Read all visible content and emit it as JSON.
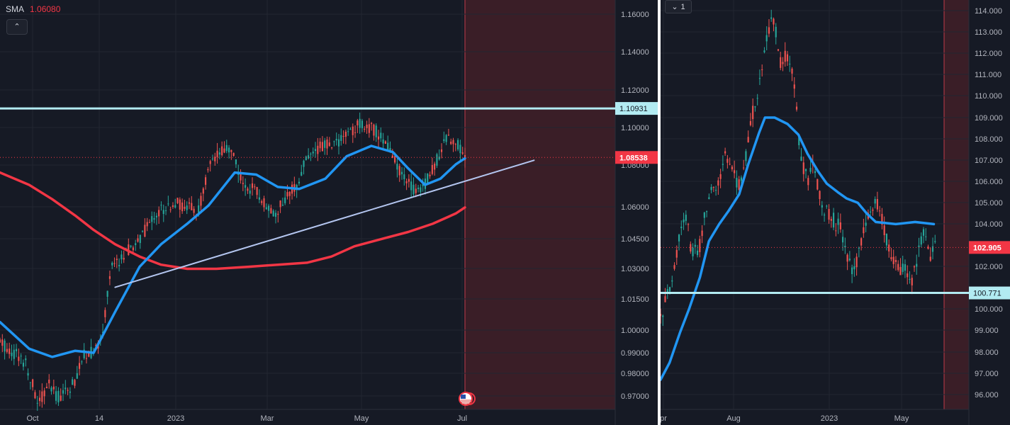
{
  "colors": {
    "background": "#161a25",
    "grid": "#222631",
    "up": "#26a69a",
    "down": "#ef5350",
    "sma_fast": "#2196f3",
    "sma_slow": "#f23645",
    "hline": "#b2ebf2",
    "trend": "#b4c6f0",
    "future_shade": "#3a1e27",
    "current_price_tag": "#f23645"
  },
  "left_legend": {
    "label": "SMA",
    "value": "1.06080",
    "collapse_icon": "chevron-up-icon",
    "collapse_label": "⌃"
  },
  "right_legend": {
    "interval_icon": "chevron-down-icon",
    "interval_glyph": "⌄",
    "interval_label": "1"
  },
  "chart_data": [
    {
      "type": "candlestick",
      "title": "",
      "y_axis_ticks": [
        "1.16000",
        "1.14000",
        "1.12000",
        "1.10000",
        "1.08000",
        "1.06000",
        "1.04500",
        "1.03000",
        "1.01500",
        "1.00000",
        "0.99000",
        "0.98000",
        "0.97000"
      ],
      "x_axis_ticks": [
        "Oct",
        "14",
        "2023",
        "Mar",
        "May",
        "Jul"
      ],
      "horizontal_line": {
        "label": "1.10931",
        "value": 1.10931
      },
      "current_price": {
        "label": "1.08538",
        "value": 1.08538
      },
      "sma_fast": [
        [
          "2022-09-01",
          1.005
        ],
        [
          "2022-09-20",
          0.992
        ],
        [
          "2022-10-05",
          0.988
        ],
        [
          "2022-10-20",
          0.991
        ],
        [
          "2022-11-01",
          0.99
        ],
        [
          "2022-11-15",
          1.01
        ],
        [
          "2022-12-01",
          1.032
        ],
        [
          "2022-12-15",
          1.043
        ],
        [
          "2023-01-01",
          1.053
        ],
        [
          "2023-01-15",
          1.062
        ],
        [
          "2023-02-01",
          1.078
        ],
        [
          "2023-02-15",
          1.077
        ],
        [
          "2023-03-01",
          1.071
        ],
        [
          "2023-03-15",
          1.07
        ],
        [
          "2023-04-01",
          1.075
        ],
        [
          "2023-04-15",
          1.086
        ],
        [
          "2023-05-01",
          1.091
        ],
        [
          "2023-05-15",
          1.088
        ],
        [
          "2023-05-25",
          1.08
        ],
        [
          "2023-06-05",
          1.072
        ],
        [
          "2023-06-15",
          1.075
        ],
        [
          "2023-06-25",
          1.082
        ],
        [
          "2023-07-01",
          1.085
        ]
      ],
      "sma_slow": [
        [
          "2022-09-01",
          1.078
        ],
        [
          "2022-09-20",
          1.072
        ],
        [
          "2022-10-05",
          1.065
        ],
        [
          "2022-10-20",
          1.057
        ],
        [
          "2022-11-01",
          1.05
        ],
        [
          "2022-11-15",
          1.043
        ],
        [
          "2022-12-01",
          1.037
        ],
        [
          "2022-12-15",
          1.033
        ],
        [
          "2023-01-01",
          1.031
        ],
        [
          "2023-01-20",
          1.031
        ],
        [
          "2023-02-10",
          1.032
        ],
        [
          "2023-03-01",
          1.033
        ],
        [
          "2023-03-20",
          1.034
        ],
        [
          "2023-04-05",
          1.037
        ],
        [
          "2023-04-20",
          1.042
        ],
        [
          "2023-05-10",
          1.046
        ],
        [
          "2023-05-25",
          1.049
        ],
        [
          "2023-06-10",
          1.053
        ],
        [
          "2023-06-25",
          1.058
        ],
        [
          "2023-07-01",
          1.061
        ]
      ],
      "trend_line": [
        [
          "2022-11-15",
          1.022
        ],
        [
          "2023-08-15",
          1.084
        ]
      ],
      "candles_path": [
        [
          "2022-09-01",
          0.995
        ],
        [
          "2022-09-10",
          0.99
        ],
        [
          "2022-09-18",
          0.985
        ],
        [
          "2022-09-26",
          0.965
        ],
        [
          "2022-10-02",
          0.975
        ],
        [
          "2022-10-08",
          0.968
        ],
        [
          "2022-10-14",
          0.972
        ],
        [
          "2022-10-20",
          0.975
        ],
        [
          "2022-10-26",
          0.99
        ],
        [
          "2022-11-01",
          0.99
        ],
        [
          "2022-11-06",
          0.995
        ],
        [
          "2022-11-12",
          1.03
        ],
        [
          "2022-11-18",
          1.035
        ],
        [
          "2022-11-24",
          1.04
        ],
        [
          "2022-12-01",
          1.045
        ],
        [
          "2022-12-08",
          1.055
        ],
        [
          "2022-12-15",
          1.06
        ],
        [
          "2022-12-22",
          1.063
        ],
        [
          "2023-01-01",
          1.062
        ],
        [
          "2023-01-08",
          1.058
        ],
        [
          "2023-01-15",
          1.08
        ],
        [
          "2023-01-22",
          1.087
        ],
        [
          "2023-01-30",
          1.09
        ],
        [
          "2023-02-06",
          1.072
        ],
        [
          "2023-02-13",
          1.07
        ],
        [
          "2023-02-20",
          1.064
        ],
        [
          "2023-02-27",
          1.058
        ],
        [
          "2023-03-06",
          1.065
        ],
        [
          "2023-03-13",
          1.072
        ],
        [
          "2023-03-20",
          1.085
        ],
        [
          "2023-03-27",
          1.09
        ],
        [
          "2023-04-03",
          1.092
        ],
        [
          "2023-04-10",
          1.093
        ],
        [
          "2023-04-17",
          1.098
        ],
        [
          "2023-04-24",
          1.102
        ],
        [
          "2023-05-01",
          1.1
        ],
        [
          "2023-05-08",
          1.095
        ],
        [
          "2023-05-15",
          1.085
        ],
        [
          "2023-05-22",
          1.075
        ],
        [
          "2023-05-29",
          1.07
        ],
        [
          "2023-06-05",
          1.072
        ],
        [
          "2023-06-12",
          1.083
        ],
        [
          "2023-06-19",
          1.095
        ],
        [
          "2023-06-26",
          1.093
        ],
        [
          "2023-07-01",
          1.086
        ]
      ]
    },
    {
      "type": "candlestick",
      "title": "",
      "y_axis_ticks": [
        "114.000",
        "113.000",
        "112.000",
        "111.000",
        "110.000",
        "109.000",
        "108.000",
        "107.000",
        "106.000",
        "105.000",
        "104.000",
        "102.000",
        "100.000",
        "99.000",
        "98.000",
        "97.000",
        "96.000"
      ],
      "x_axis_ticks": [
        "pr",
        "Aug",
        "2023",
        "May"
      ],
      "horizontal_line": {
        "label": "100.771",
        "value": 100.771
      },
      "current_price": {
        "label": "102.905",
        "value": 102.905
      },
      "sma_fast": [
        [
          "2022-04-01",
          96.7
        ],
        [
          "2022-04-15",
          97.5
        ],
        [
          "2022-05-01",
          98.9
        ],
        [
          "2022-05-15",
          100.0
        ],
        [
          "2022-06-01",
          101.5
        ],
        [
          "2022-06-15",
          103.2
        ],
        [
          "2022-07-01",
          104.0
        ],
        [
          "2022-07-15",
          104.6
        ],
        [
          "2022-08-01",
          105.4
        ],
        [
          "2022-08-15",
          106.8
        ],
        [
          "2022-09-01",
          108.3
        ],
        [
          "2022-09-10",
          109.0
        ],
        [
          "2022-09-25",
          109.0
        ],
        [
          "2022-10-15",
          108.7
        ],
        [
          "2022-11-01",
          108.2
        ],
        [
          "2022-11-15",
          107.3
        ],
        [
          "2022-12-01",
          106.5
        ],
        [
          "2022-12-15",
          105.9
        ],
        [
          "2023-01-01",
          105.5
        ],
        [
          "2023-01-15",
          105.2
        ],
        [
          "2023-02-01",
          105.0
        ],
        [
          "2023-02-15",
          104.5
        ],
        [
          "2023-03-01",
          104.1
        ],
        [
          "2023-04-01",
          104.0
        ],
        [
          "2023-05-01",
          104.1
        ],
        [
          "2023-05-30",
          104.0
        ]
      ],
      "candles_path": [
        [
          "2022-04-01",
          99.5
        ],
        [
          "2022-04-10",
          100.5
        ],
        [
          "2022-04-20",
          101.5
        ],
        [
          "2022-05-01",
          103.5
        ],
        [
          "2022-05-10",
          104.5
        ],
        [
          "2022-05-20",
          102.5
        ],
        [
          "2022-06-01",
          103.0
        ],
        [
          "2022-06-10",
          104.8
        ],
        [
          "2022-06-20",
          105.5
        ],
        [
          "2022-07-01",
          105.8
        ],
        [
          "2022-07-10",
          107.5
        ],
        [
          "2022-07-20",
          106.5
        ],
        [
          "2022-08-01",
          105.8
        ],
        [
          "2022-08-10",
          106.8
        ],
        [
          "2022-08-20",
          109.0
        ],
        [
          "2022-09-01",
          110.5
        ],
        [
          "2022-09-10",
          112.5
        ],
        [
          "2022-09-20",
          113.5
        ],
        [
          "2022-09-28",
          113.0
        ],
        [
          "2022-10-05",
          111.5
        ],
        [
          "2022-10-15",
          112.0
        ],
        [
          "2022-10-25",
          110.5
        ],
        [
          "2022-11-05",
          107.0
        ],
        [
          "2022-11-15",
          106.0
        ],
        [
          "2022-11-25",
          106.8
        ],
        [
          "2022-12-05",
          105.2
        ],
        [
          "2022-12-15",
          104.5
        ],
        [
          "2022-12-25",
          104.2
        ],
        [
          "2023-01-05",
          103.8
        ],
        [
          "2023-01-15",
          102.5
        ],
        [
          "2023-01-25",
          101.8
        ],
        [
          "2023-02-05",
          102.8
        ],
        [
          "2023-02-15",
          104.2
        ],
        [
          "2023-02-25",
          104.8
        ],
        [
          "2023-03-05",
          105.0
        ],
        [
          "2023-03-15",
          103.5
        ],
        [
          "2023-03-25",
          102.5
        ],
        [
          "2023-04-05",
          102.0
        ],
        [
          "2023-04-15",
          101.8
        ],
        [
          "2023-04-25",
          101.3
        ],
        [
          "2023-05-05",
          102.5
        ],
        [
          "2023-05-15",
          103.8
        ],
        [
          "2023-05-25",
          102.5
        ],
        [
          "2023-06-01",
          102.9
        ]
      ]
    }
  ]
}
